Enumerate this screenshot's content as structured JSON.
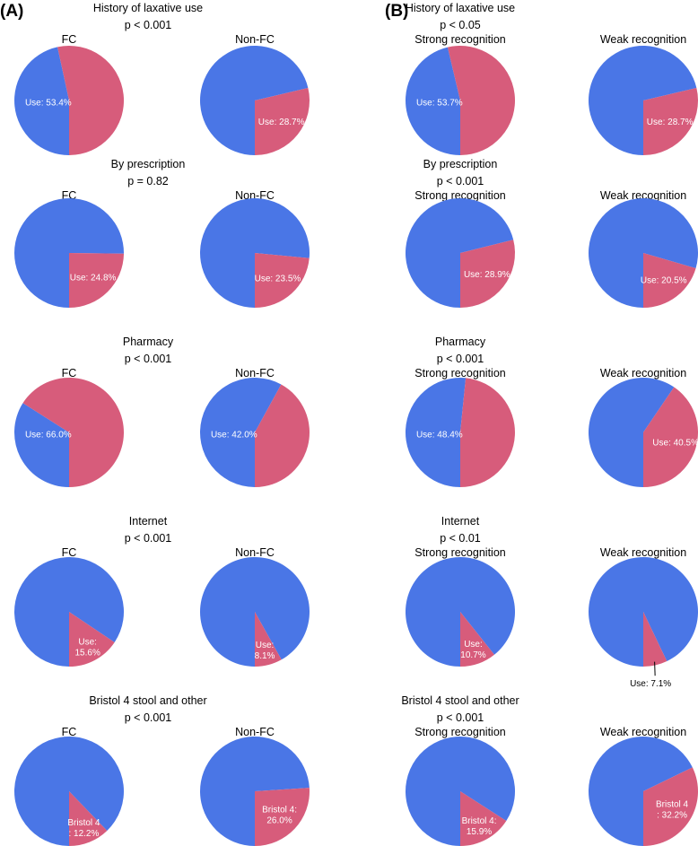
{
  "colors": {
    "use": "#d75c7b",
    "other": "#4a76e6",
    "text": "#000000",
    "label": "#ffffff"
  },
  "panels": [
    {
      "label": "(A)",
      "groups": [
        "FC",
        "Non-FC"
      ]
    },
    {
      "label": "(B)",
      "groups": [
        "Strong recognition",
        "Weak recognition"
      ]
    }
  ],
  "chart_data": [
    {
      "type": "pie",
      "panel": "(A)",
      "title": "History of laxative use",
      "pvalue": "p < 0.001",
      "pies": [
        {
          "group": "FC",
          "slice_pct": 53.4,
          "label_lines": [
            "Use: 53.4%"
          ]
        },
        {
          "group": "Non-FC",
          "slice_pct": 28.7,
          "label_lines": [
            "Use: 28.7%"
          ]
        }
      ]
    },
    {
      "type": "pie",
      "panel": "(A)",
      "title": "By prescription",
      "pvalue": "p = 0.82",
      "pies": [
        {
          "group": "FC",
          "slice_pct": 24.8,
          "label_lines": [
            "Use: 24.8%"
          ]
        },
        {
          "group": "Non-FC",
          "slice_pct": 23.5,
          "label_lines": [
            "Use: 23.5%"
          ]
        }
      ]
    },
    {
      "type": "pie",
      "panel": "(A)",
      "title": "Pharmacy",
      "pvalue": "p < 0.001",
      "pies": [
        {
          "group": "FC",
          "slice_pct": 66.0,
          "label_lines": [
            "Use: 66.0%"
          ]
        },
        {
          "group": "Non-FC",
          "slice_pct": 42.0,
          "label_lines": [
            "Use: 42.0%"
          ]
        }
      ]
    },
    {
      "type": "pie",
      "panel": "(A)",
      "title": "Internet",
      "pvalue": "p < 0.001",
      "pies": [
        {
          "group": "FC",
          "slice_pct": 15.6,
          "label_lines": [
            "Use:",
            "15.6%"
          ]
        },
        {
          "group": "Non-FC",
          "slice_pct": 8.1,
          "label_lines": [
            "Use:",
            "8.1%"
          ]
        }
      ]
    },
    {
      "type": "pie",
      "panel": "(A)",
      "title": "Bristol 4 stool and other",
      "pvalue": "p < 0.001",
      "pies": [
        {
          "group": "FC",
          "slice_pct": 12.2,
          "label_lines": [
            "Bristol 4",
            ": 12.2%"
          ]
        },
        {
          "group": "Non-FC",
          "slice_pct": 26.0,
          "label_lines": [
            "Bristol 4:",
            "26.0%"
          ]
        }
      ]
    },
    {
      "type": "pie",
      "panel": "(B)",
      "title": "History of laxative use",
      "pvalue": "p < 0.05",
      "pies": [
        {
          "group": "Strong recognition",
          "slice_pct": 53.7,
          "label_lines": [
            "Use: 53.7%"
          ]
        },
        {
          "group": "Weak recognition",
          "slice_pct": 28.7,
          "label_lines": [
            "Use: 28.7%"
          ]
        }
      ]
    },
    {
      "type": "pie",
      "panel": "(B)",
      "title": "By prescription",
      "pvalue": "p < 0.001",
      "pies": [
        {
          "group": "Strong recognition",
          "slice_pct": 28.9,
          "label_lines": [
            "Use: 28.9%"
          ]
        },
        {
          "group": "Weak recognition",
          "slice_pct": 20.5,
          "label_lines": [
            "Use: 20.5%"
          ]
        }
      ]
    },
    {
      "type": "pie",
      "panel": "(B)",
      "title": "Pharmacy",
      "pvalue": "p < 0.001",
      "pies": [
        {
          "group": "Strong recognition",
          "slice_pct": 48.4,
          "label_lines": [
            "Use: 48.4%"
          ]
        },
        {
          "group": "Weak recognition",
          "slice_pct": 40.5,
          "label_lines": [
            "Use: 40.5%"
          ]
        }
      ]
    },
    {
      "type": "pie",
      "panel": "(B)",
      "title": "Internet",
      "pvalue": "p < 0.01",
      "pies": [
        {
          "group": "Strong recognition",
          "slice_pct": 10.7,
          "label_lines": [
            "Use:",
            "10.7%"
          ]
        },
        {
          "group": "Weak recognition",
          "slice_pct": 7.1,
          "label_lines": [
            "Use: 7.1%"
          ],
          "outside_label": true
        }
      ]
    },
    {
      "type": "pie",
      "panel": "(B)",
      "title": "Bristol 4 stool and other",
      "pvalue": "p < 0.001",
      "pies": [
        {
          "group": "Strong recognition",
          "slice_pct": 15.9,
          "label_lines": [
            "Bristol 4:",
            "15.9%"
          ]
        },
        {
          "group": "Weak recognition",
          "slice_pct": 32.2,
          "label_lines": [
            "Bristol 4",
            ": 32.2%"
          ]
        }
      ]
    }
  ]
}
